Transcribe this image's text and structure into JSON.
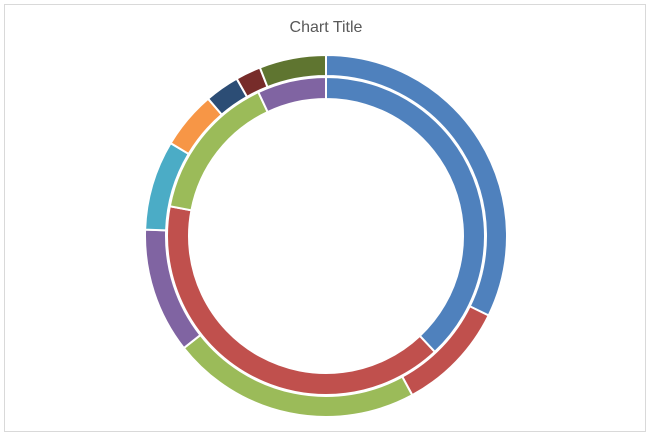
{
  "chart_data": {
    "type": "donut",
    "title": "Chart Title",
    "series": [
      {
        "ring": "inner",
        "values": [
          38,
          40,
          15,
          7
        ],
        "colors": [
          "#4f81bd",
          "#c0504d",
          "#9bbb59",
          "#8064a2"
        ]
      },
      {
        "ring": "outer",
        "values": [
          31.4,
          9.6,
          21.7,
          10.9,
          7.8,
          5.0,
          3.0,
          2.2,
          5.8
        ],
        "colors": [
          "#4f81bd",
          "#c0504d",
          "#9bbb59",
          "#8064a2",
          "#4bacc6",
          "#f79646",
          "#2c4d75",
          "#772c2a",
          "#5f7530"
        ]
      }
    ]
  }
}
